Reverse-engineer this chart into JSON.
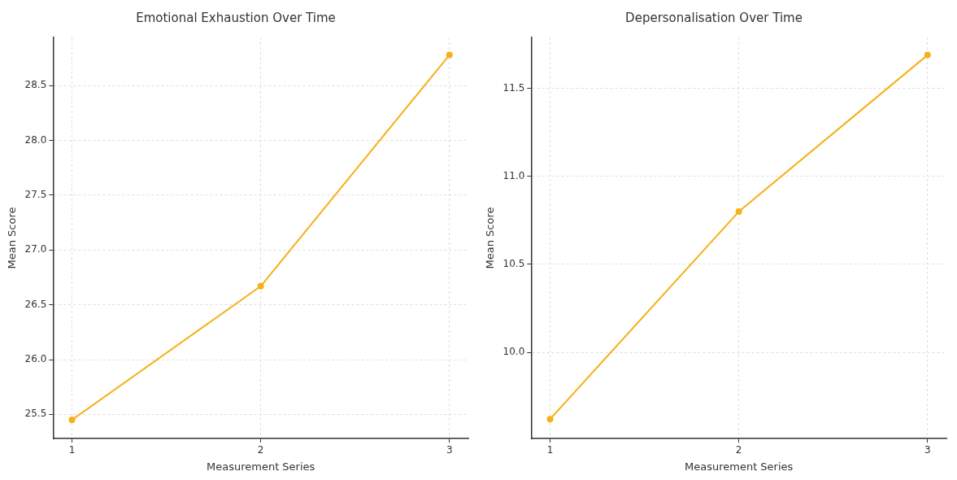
{
  "chart_data": [
    {
      "type": "line",
      "title": "Emotional Exhaustion Over Time",
      "xlabel": "Measurement Series",
      "ylabel": "Mean Score",
      "x": [
        1,
        2,
        3
      ],
      "series": [
        {
          "color": "#f5b117",
          "values": [
            25.45,
            26.67,
            28.78
          ]
        }
      ],
      "xlim": [
        0.9,
        3.1
      ],
      "xticks": [
        1,
        2,
        3
      ],
      "ylim": [
        25.28,
        28.94
      ],
      "yticks": [
        {
          "value": 25.5,
          "label": "25.5"
        },
        {
          "value": 26,
          "label": "26.0"
        },
        {
          "value": 26.5,
          "label": "26.5"
        },
        {
          "value": 27,
          "label": "27.0"
        },
        {
          "value": 27.5,
          "label": "27.5"
        },
        {
          "value": 28,
          "label": "28.0"
        },
        {
          "value": 28.5,
          "label": "28.5"
        }
      ],
      "grid": true,
      "legend": false,
      "marker": "circle",
      "line_style": "solid"
    },
    {
      "type": "line",
      "title": "Depersonalisation Over Time",
      "xlabel": "Measurement Series",
      "ylabel": "Mean Score",
      "x": [
        1,
        2,
        3
      ],
      "series": [
        {
          "color": "#f5b117",
          "values": [
            9.62,
            10.8,
            11.69
          ]
        }
      ],
      "xlim": [
        0.9,
        3.1
      ],
      "xticks": [
        1,
        2,
        3
      ],
      "ylim": [
        9.51,
        11.79
      ],
      "yticks": [
        {
          "value": 10,
          "label": "10.0"
        },
        {
          "value": 10.5,
          "label": "10.5"
        },
        {
          "value": 11,
          "label": "11.0"
        },
        {
          "value": 11.5,
          "label": "11.5"
        }
      ],
      "grid": true,
      "legend": false,
      "marker": "circle",
      "line_style": "solid"
    }
  ]
}
